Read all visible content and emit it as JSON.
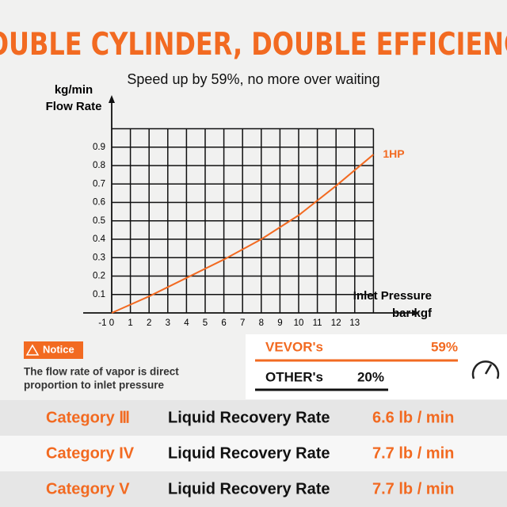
{
  "chart_data": {
    "type": "line",
    "title": "DOUBLE CYLINDER, DOUBLE EFFICIENCY",
    "subtitle": "Speed up by 59%, no more over waiting",
    "y_label": [
      "kg/min",
      "Flow Rate"
    ],
    "x_label": [
      "Inlet Pressure",
      "bar kgf"
    ],
    "x": [
      0,
      2,
      4,
      6,
      8,
      10,
      12,
      14
    ],
    "series": [
      {
        "name": "1HP",
        "color": "#f26a21",
        "values": [
          0,
          0.09,
          0.19,
          0.29,
          0.4,
          0.53,
          0.69,
          0.86
        ]
      }
    ],
    "xlim": [
      -1,
      14
    ],
    "xticks": [
      -1,
      0,
      1,
      2,
      3,
      4,
      5,
      6,
      7,
      8,
      9,
      10,
      11,
      12,
      13
    ],
    "ylim": [
      0,
      1
    ],
    "yticks": [
      0.1,
      0.2,
      0.3,
      0.4,
      0.5,
      0.6,
      0.7,
      0.8,
      0.9
    ],
    "grid": true
  },
  "notice": {
    "label": "Notice",
    "text": [
      "The flow rate of vapor is direct",
      "proportion to inlet pressure"
    ]
  },
  "comparison": [
    {
      "name": "VEVOR's",
      "value": "59%"
    },
    {
      "name": "OTHER's",
      "value": "20%"
    }
  ],
  "table": {
    "rows": [
      [
        "Category Ⅲ",
        "Liquid Recovery Rate",
        "6.6 lb / min"
      ],
      [
        "Category IV",
        "Liquid Recovery Rate",
        "7.7 lb / min"
      ],
      [
        "Category V",
        "Liquid Recovery Rate",
        "7.7 lb / min"
      ]
    ]
  }
}
